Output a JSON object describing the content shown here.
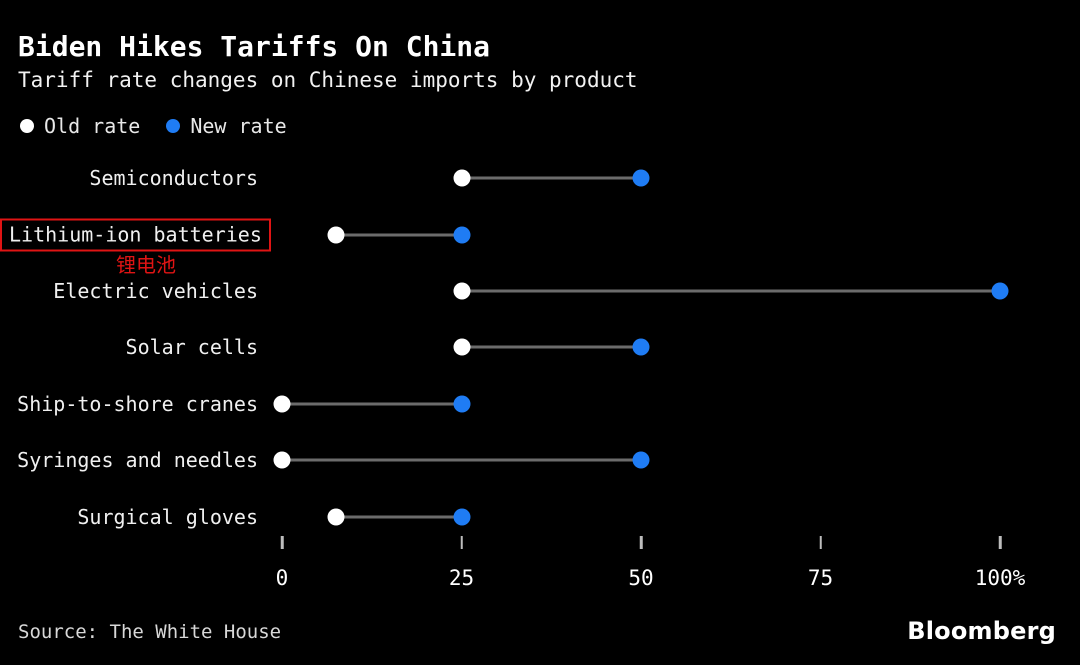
{
  "header": {
    "title": "Biden Hikes Tariffs On China",
    "subtitle": "Tariff rate changes on Chinese imports by product"
  },
  "legend": {
    "old_label": "Old rate",
    "new_label": "New rate"
  },
  "annotation": {
    "highlighted_category": "Lithium-ion batteries",
    "note_text": "锂电池"
  },
  "footer": {
    "source": "Source: The White House",
    "brand": "Bloomberg"
  },
  "colors": {
    "background": "#000000",
    "old_dot": "#ffffff",
    "new_dot": "#1f7cf4",
    "connector": "#6b6b6b",
    "annotation_red": "#e01414",
    "text": "#ffffff"
  },
  "chart_data": {
    "type": "dumbbell",
    "title": "Biden Hikes Tariffs On China",
    "subtitle": "Tariff rate changes on Chinese imports by product",
    "categories": [
      "Semiconductors",
      "Lithium-ion batteries",
      "Electric vehicles",
      "Solar cells",
      "Ship-to-shore cranes",
      "Syringes and needles",
      "Surgical gloves"
    ],
    "series": [
      {
        "name": "Old rate",
        "color": "#ffffff",
        "values": [
          25,
          7.5,
          25,
          25,
          0,
          0,
          7.5
        ]
      },
      {
        "name": "New rate",
        "color": "#1f7cf4",
        "values": [
          50,
          25,
          100,
          50,
          25,
          50,
          25
        ]
      }
    ],
    "xlim": [
      0,
      100
    ],
    "x_tick_values": [
      0,
      25,
      50,
      75,
      100
    ],
    "x_tick_labels": [
      "0",
      "25",
      "50",
      "75",
      "100%"
    ],
    "grid": false,
    "legend_position": "top-left",
    "highlighted_category": "Lithium-ion batteries",
    "source": "Source: The White House",
    "brand": "Bloomberg"
  }
}
